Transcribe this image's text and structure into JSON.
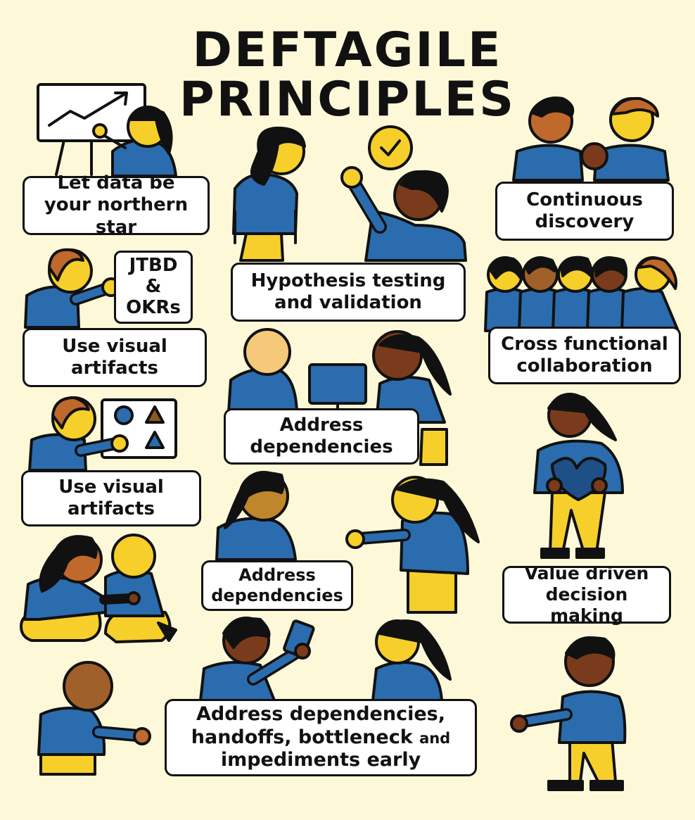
{
  "title": {
    "line1": "DEFTAGILE",
    "line2": "PRINCIPLES"
  },
  "labels": {
    "data_star": "Let data be\nyour northern star",
    "hypothesis": "Hypothesis testing\nand validation",
    "continuous": "Continuous\ndiscovery",
    "visual1": "Use visual\nartifacts",
    "cross": "Cross functional\ncollaboration",
    "address1": "Address\ndependencies",
    "visual2": "Use visual\nartifacts",
    "address2": "Address\ndependencies",
    "value": "Value driven\ndecision making",
    "address_long_1": "Address dependencies,",
    "address_long_2a": "handoffs, bottleneck ",
    "address_long_2b": "and",
    "address_long_3": "impediments early"
  },
  "sign": {
    "line1": "JTBD",
    "line2": "&",
    "line3": "OKRs"
  },
  "colors": {
    "background": "#fdf9d8",
    "shirt": "#2b6cae",
    "pants": "#f5c51b",
    "outline": "#111111",
    "skin_light": "#f6cf2b",
    "skin_dark": "#7a3b1c"
  }
}
